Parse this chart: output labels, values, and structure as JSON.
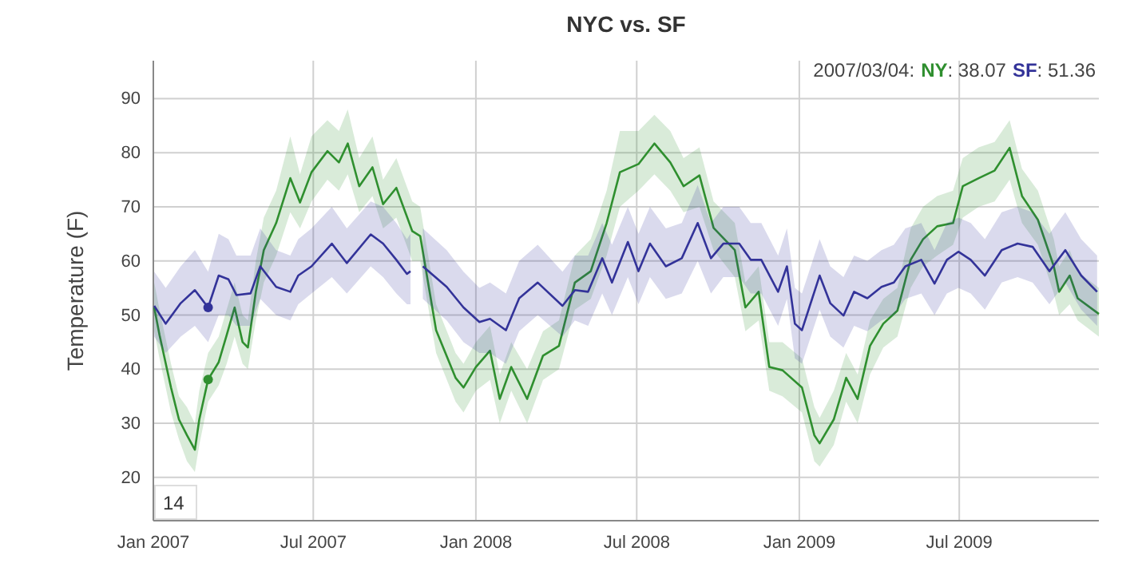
{
  "chart_data": {
    "type": "line",
    "title": "NYC vs. SF",
    "ylabel": "Temperature (F)",
    "xlim": [
      "2007-01-01",
      "2009-12-06"
    ],
    "ylim": [
      12,
      97
    ],
    "xticks": [
      {
        "value": "2007-01-01",
        "label": "Jan 2007"
      },
      {
        "value": "2007-07-01",
        "label": "Jul 2007"
      },
      {
        "value": "2008-01-01",
        "label": "Jan 2008"
      },
      {
        "value": "2008-07-01",
        "label": "Jul 2008"
      },
      {
        "value": "2009-01-01",
        "label": "Jan 2009"
      },
      {
        "value": "2009-07-01",
        "label": "Jul 2009"
      }
    ],
    "yticks": [
      20,
      30,
      40,
      50,
      60,
      70,
      80,
      90
    ],
    "grid": true,
    "legend": "top right",
    "annotations": [
      "2007/03/04:",
      ": 38.07",
      ": 51.36",
      "14"
    ],
    "series": [
      {
        "name": "NY",
        "color": "#2f8f2f",
        "x": [
          "2007-01-02",
          "2007-01-08",
          "2007-01-21",
          "2007-01-30",
          "2007-02-08",
          "2007-02-17",
          "2007-02-22",
          "2007-03-04",
          "2007-03-16",
          "2007-03-25",
          "2007-04-03",
          "2007-04-12",
          "2007-04-18",
          "2007-04-27",
          "2007-05-06",
          "2007-05-20",
          "2007-06-05",
          "2007-06-16",
          "2007-06-29",
          "2007-07-17",
          "2007-07-30",
          "2007-08-09",
          "2007-08-22",
          "2007-09-06",
          "2007-09-18",
          "2007-10-03",
          "2007-10-21",
          "2007-10-30",
          "2007-11-17",
          "2007-12-09",
          "2007-12-18",
          "2008-01-01",
          "2008-01-17",
          "2008-01-28",
          "2008-02-10",
          "2008-02-28",
          "2008-03-17",
          "2008-04-04",
          "2008-04-22",
          "2008-05-10",
          "2008-05-28",
          "2008-06-12",
          "2008-07-03",
          "2008-07-21",
          "2008-08-08",
          "2008-08-23",
          "2008-09-10",
          "2008-09-26",
          "2008-10-20",
          "2008-11-01",
          "2008-11-16",
          "2008-11-28",
          "2008-12-13",
          "2009-01-04",
          "2009-01-18",
          "2009-01-24",
          "2009-02-09",
          "2009-02-23",
          "2009-03-08",
          "2009-03-22",
          "2009-04-06",
          "2009-04-22",
          "2009-05-07",
          "2009-05-21",
          "2009-06-06",
          "2009-06-24",
          "2009-07-05",
          "2009-07-23",
          "2009-08-10",
          "2009-08-27",
          "2009-09-10",
          "2009-09-28",
          "2009-10-16",
          "2009-10-22",
          "2009-11-03",
          "2009-11-12",
          "2009-12-06"
        ],
        "values": [
          51.4,
          46.3,
          36.6,
          30.7,
          27.8,
          25.1,
          30.7,
          38.1,
          41.3,
          46.3,
          51.4,
          45,
          44,
          54.3,
          62,
          67,
          75.3,
          70.8,
          76.4,
          80.3,
          78.2,
          81.7,
          73.8,
          77.3,
          70.5,
          73.5,
          65.5,
          64.6,
          47.2,
          38.4,
          36.6,
          40.4,
          43.4,
          34.5,
          40.4,
          34.5,
          42.5,
          44.3,
          56,
          58.1,
          67,
          76.4,
          77.9,
          81.7,
          78.2,
          73.8,
          75.8,
          66.1,
          62,
          51.4,
          54.3,
          40.4,
          39.8,
          36.6,
          27.8,
          26.3,
          30.7,
          38.4,
          34.5,
          44.3,
          48.4,
          50.8,
          60.2,
          64,
          66.4,
          67,
          73.8,
          75.3,
          76.7,
          80.9,
          72,
          67.6,
          59,
          54.3,
          57.3,
          53.1,
          50.2
        ],
        "lower": [
          47,
          42,
          32,
          27,
          23,
          21,
          26,
          34,
          37,
          41,
          46,
          41,
          40,
          49,
          56,
          61,
          69,
          66,
          71,
          75,
          73,
          76,
          69,
          72,
          66,
          68,
          60,
          60,
          43,
          34,
          32,
          36,
          38,
          30,
          36,
          30,
          38,
          40,
          51,
          53,
          61,
          70,
          73,
          76,
          73,
          69,
          70,
          62,
          57,
          47,
          49,
          36,
          35,
          32,
          23,
          22,
          26,
          34,
          30,
          39,
          44,
          46,
          55,
          59,
          61,
          63,
          68,
          70,
          71,
          75,
          67,
          63,
          54,
          50,
          52,
          49,
          46
        ],
        "upper": [
          56,
          51,
          41,
          35,
          33,
          30,
          36,
          43,
          46,
          51,
          56,
          50,
          49,
          60,
          68,
          73,
          83,
          76,
          83,
          86,
          84,
          88,
          79,
          83,
          75,
          79,
          71,
          70,
          52,
          43,
          41,
          45,
          48,
          39,
          45,
          40,
          47,
          49,
          61,
          64,
          73,
          84,
          84,
          87,
          84,
          79,
          81,
          71,
          67,
          56,
          59,
          45,
          45,
          42,
          33,
          31,
          36,
          43,
          39,
          49,
          53,
          55,
          66,
          70,
          72,
          73,
          79,
          81,
          82,
          86,
          77,
          73,
          64,
          59,
          62,
          58,
          55
        ]
      },
      {
        "name": "SF",
        "color": "#333399",
        "x": [
          "2007-01-02",
          "2007-01-15",
          "2007-02-01",
          "2007-02-17",
          "2007-03-04",
          "2007-03-16",
          "2007-03-27",
          "2007-04-05",
          "2007-04-21",
          "2007-05-02",
          "2007-05-20",
          "2007-06-05",
          "2007-06-14",
          "2007-06-29",
          "2007-07-22",
          "2007-08-08",
          "2007-09-04",
          "2007-09-18",
          "2007-10-03",
          "2007-10-15",
          "2007-10-19",
          "2007-10-25",
          "2007-11-02",
          "2007-11-29",
          "2007-12-18",
          "2008-01-05",
          "2008-01-17",
          "2008-02-04",
          "2008-02-19",
          "2008-03-11",
          "2008-04-08",
          "2008-04-22",
          "2008-05-07",
          "2008-05-23",
          "2008-06-03",
          "2008-06-21",
          "2008-07-03",
          "2008-07-16",
          "2008-08-03",
          "2008-08-21",
          "2008-09-08",
          "2008-09-23",
          "2008-10-07",
          "2008-10-25",
          "2008-11-07",
          "2008-11-19",
          "2008-12-08",
          "2008-12-18",
          "2008-12-27",
          "2009-01-04",
          "2009-01-24",
          "2009-02-05",
          "2009-02-20",
          "2009-03-04",
          "2009-03-19",
          "2009-04-04",
          "2009-04-18",
          "2009-05-01",
          "2009-05-19",
          "2009-06-03",
          "2009-06-17",
          "2009-06-30",
          "2009-07-14",
          "2009-07-30",
          "2009-08-18",
          "2009-09-05",
          "2009-09-22",
          "2009-10-11",
          "2009-10-29",
          "2009-11-16",
          "2009-12-04"
        ],
        "values": [
          51.7,
          48.4,
          52.2,
          54.6,
          51.4,
          57.3,
          56.6,
          53.7,
          54,
          59,
          55.2,
          54.3,
          57.3,
          59,
          63.2,
          59.6,
          64.9,
          63.2,
          60.2,
          57.6,
          58.1,
          null,
          59,
          55.2,
          51.4,
          48.7,
          49.3,
          47.2,
          53.1,
          56,
          51.7,
          54.6,
          54.3,
          60.5,
          56,
          63.5,
          58.1,
          63.2,
          59,
          60.5,
          67,
          60.5,
          63.2,
          63.2,
          60.2,
          60.2,
          54.3,
          59,
          48.4,
          47.2,
          57.3,
          52.2,
          49.9,
          54.3,
          53.1,
          55.2,
          56,
          59,
          60.2,
          55.8,
          60.2,
          61.7,
          60.2,
          57.3,
          62,
          63.2,
          62.6,
          58.1,
          62,
          57.3,
          54.3
        ],
        "lower": [
          46,
          43,
          46,
          48,
          45,
          50,
          50,
          48,
          48,
          53,
          50,
          49,
          52,
          54,
          57,
          54,
          59,
          57,
          54,
          52,
          52,
          null,
          53,
          49,
          45,
          43,
          43,
          41,
          47,
          50,
          46,
          49,
          48,
          54,
          50,
          57,
          52,
          57,
          53,
          54,
          60,
          54,
          57,
          57,
          54,
          54,
          48,
          53,
          42,
          41,
          51,
          46,
          44,
          48,
          47,
          49,
          50,
          53,
          54,
          50,
          54,
          55,
          54,
          51,
          56,
          57,
          56,
          52,
          56,
          51,
          48
        ],
        "upper": [
          58,
          55,
          59,
          62,
          58,
          65,
          64,
          61,
          61,
          66,
          62,
          61,
          64,
          66,
          70,
          66,
          71,
          70,
          67,
          64,
          65,
          null,
          66,
          62,
          58,
          55,
          56,
          54,
          60,
          63,
          58,
          61,
          61,
          67,
          63,
          70,
          65,
          70,
          66,
          67,
          74,
          67,
          70,
          70,
          67,
          67,
          61,
          66,
          55,
          54,
          64,
          59,
          57,
          61,
          60,
          62,
          63,
          66,
          67,
          62,
          67,
          68,
          67,
          64,
          69,
          70,
          69,
          65,
          69,
          64,
          61
        ]
      },
      {
        "type": "scatter",
        "color": "#2f8f2f",
        "x": [
          "2007-03-04"
        ],
        "values": [
          38.1
        ]
      },
      {
        "type": "scatter",
        "color": "#333399",
        "x": [
          "2007-03-04"
        ],
        "values": [
          51.4
        ]
      }
    ]
  }
}
